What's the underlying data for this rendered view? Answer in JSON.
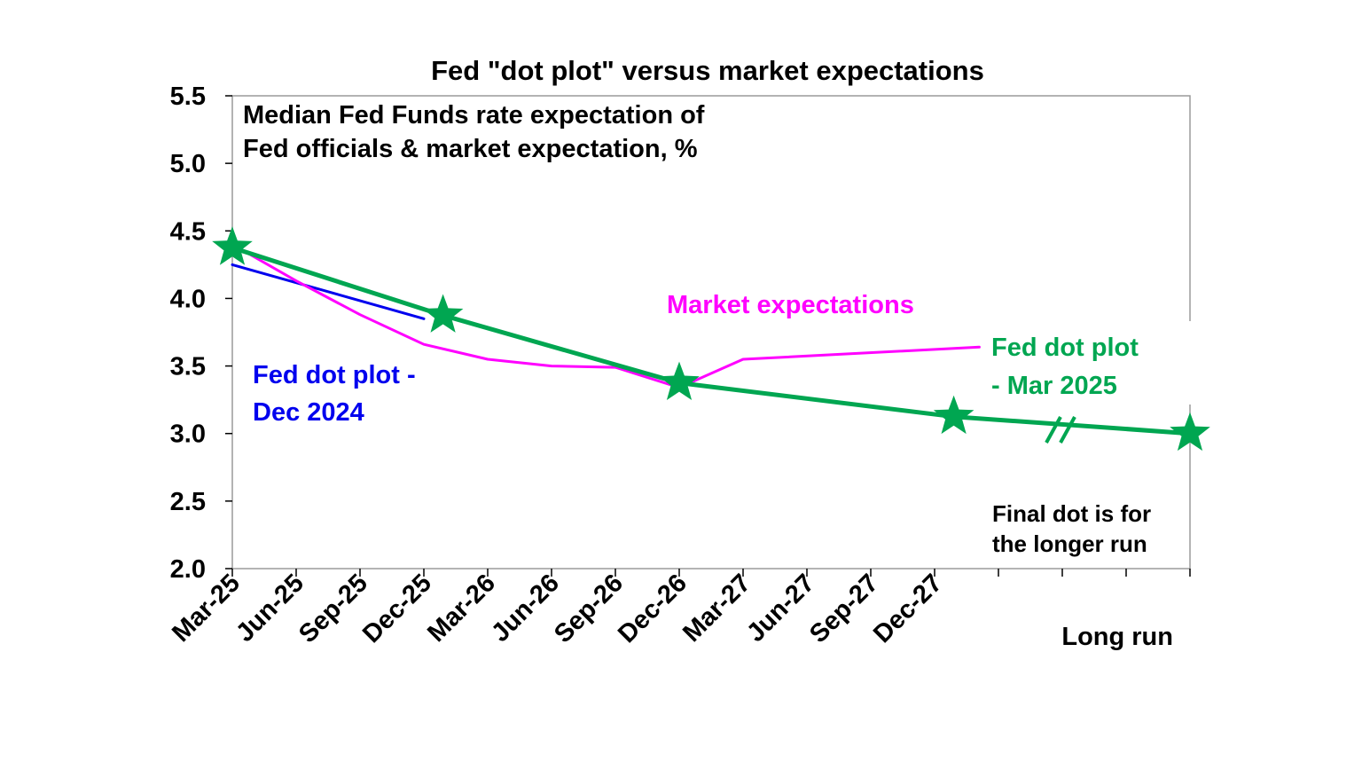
{
  "chart_data": {
    "type": "line",
    "title": "Fed \"dot plot\" versus market expectations",
    "subtitle_lines": [
      "Median Fed Funds rate expectation of",
      "Fed officials & market expectation, %"
    ],
    "xlabel": "",
    "ylabel": "",
    "ylim": [
      2.0,
      5.5
    ],
    "yticks": [
      "2.0",
      "2.5",
      "3.0",
      "3.5",
      "4.0",
      "4.5",
      "5.0",
      "5.5"
    ],
    "x_index_range": [
      0,
      15
    ],
    "categories": [
      "Mar-25",
      "Jun-25",
      "Sep-25",
      "Dec-25",
      "Mar-26",
      "Jun-26",
      "Sep-26",
      "Dec-26",
      "Mar-27",
      "Jun-27",
      "Sep-27",
      "Dec-27"
    ],
    "long_run_label": "Long run",
    "series": [
      {
        "name": "Fed dot plot - Dec 2024",
        "label_lines": [
          "Fed dot plot -",
          "Dec 2024"
        ],
        "color": "#0000ee",
        "stroke": 3,
        "points": [
          [
            0,
            4.25
          ],
          [
            3,
            3.85
          ]
        ]
      },
      {
        "name": "Market expectations",
        "label_lines": [
          "Market expectations"
        ],
        "color": "#ff00ff",
        "stroke": 3,
        "points": [
          [
            0,
            4.4
          ],
          [
            1,
            4.13
          ],
          [
            2,
            3.88
          ],
          [
            3,
            3.66
          ],
          [
            4,
            3.55
          ],
          [
            5,
            3.5
          ],
          [
            6,
            3.49
          ],
          [
            7,
            3.34
          ],
          [
            8,
            3.55
          ],
          [
            11.7,
            3.64
          ]
        ]
      },
      {
        "name": "Fed dot plot - Mar 2025",
        "label_lines": [
          "Fed dot plot",
          "- Mar 2025"
        ],
        "color": "#00a651",
        "stroke": 5,
        "points": [
          [
            0,
            4.375
          ],
          [
            3.3,
            3.875
          ],
          [
            7,
            3.375
          ],
          [
            11.3,
            3.125
          ],
          [
            15,
            3.0
          ]
        ],
        "markers": "star"
      }
    ],
    "annotations": {
      "final_dot_note": [
        "Final dot is for",
        "the longer run"
      ]
    }
  }
}
